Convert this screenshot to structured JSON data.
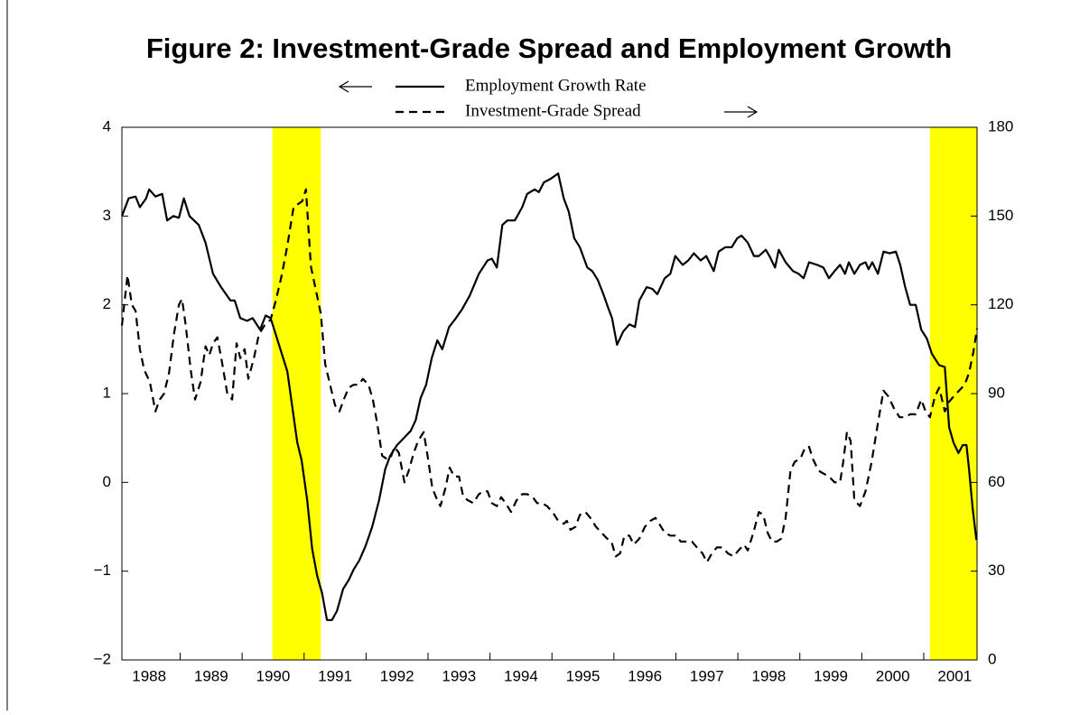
{
  "chart_data": {
    "type": "line",
    "title": "Figure 2: Investment-Grade Spread and Employment Growth",
    "xlim": [
      1988.06,
      2001.86
    ],
    "xticks": [
      {
        "value": 1988,
        "label": "1988"
      },
      {
        "value": 1989,
        "label": "1989"
      },
      {
        "value": 1990,
        "label": "1990"
      },
      {
        "value": 1991,
        "label": "1991"
      },
      {
        "value": 1992,
        "label": "1992"
      },
      {
        "value": 1993,
        "label": "1993"
      },
      {
        "value": 1994,
        "label": "1994"
      },
      {
        "value": 1995,
        "label": "1995"
      },
      {
        "value": 1996,
        "label": "1996"
      },
      {
        "value": 1997,
        "label": "1997"
      },
      {
        "value": 1998,
        "label": "1998"
      },
      {
        "value": 1999,
        "label": "1999"
      },
      {
        "value": 2000,
        "label": "2000"
      },
      {
        "value": 2001,
        "label": "2001"
      }
    ],
    "ylim": [
      -2,
      4
    ],
    "yticks": [
      {
        "value": -2,
        "label": "−2"
      },
      {
        "value": -1,
        "label": "−1"
      },
      0,
      1,
      2,
      3,
      4
    ],
    "y2lim": [
      0,
      180
    ],
    "y2ticks": [
      0,
      30,
      60,
      90,
      120,
      150,
      180
    ],
    "shaded_periods": [
      [
        1990.49,
        1991.27
      ],
      [
        2001.1,
        2001.86
      ]
    ],
    "shade_color": "#ffff00",
    "series": [
      {
        "name": "Employment Growth Rate",
        "color": "#000000",
        "style": "solid",
        "x": [
          1988.06,
          1988.17,
          1988.28,
          1988.35,
          1988.45,
          1988.5,
          1988.6,
          1988.71,
          1988.79,
          1988.89,
          1988.98,
          1989.06,
          1989.15,
          1989.3,
          1989.41,
          1989.53,
          1989.66,
          1989.81,
          1989.88,
          1989.97,
          1990.08,
          1990.17,
          1990.29,
          1990.38,
          1990.46,
          1990.55,
          1990.64,
          1990.73,
          1990.8,
          1990.89,
          1990.96,
          1991.05,
          1991.13,
          1991.21,
          1991.29,
          1991.37,
          1991.45,
          1991.53,
          1991.63,
          1991.72,
          1991.8,
          1991.89,
          1991.99,
          1992.1,
          1992.21,
          1992.31,
          1992.39,
          1992.5,
          1992.61,
          1992.72,
          1992.8,
          1992.88,
          1992.97,
          1993.06,
          1993.15,
          1993.23,
          1993.34,
          1993.45,
          1993.55,
          1993.67,
          1993.82,
          1993.96,
          1994.03,
          1994.11,
          1994.2,
          1994.28,
          1994.4,
          1994.52,
          1994.6,
          1994.72,
          1994.79,
          1994.87,
          1994.98,
          1995.1,
          1995.19,
          1995.27,
          1995.36,
          1995.45,
          1995.57,
          1995.65,
          1995.74,
          1995.83,
          1995.9,
          1995.97,
          1996.05,
          1996.15,
          1996.25,
          1996.34,
          1996.41,
          1996.53,
          1996.62,
          1996.7,
          1996.82,
          1996.91,
          1996.99,
          1997.11,
          1997.2,
          1997.29,
          1997.4,
          1997.49,
          1997.61,
          1997.69,
          1997.8,
          1997.9,
          1997.99,
          1998.06,
          1998.16,
          1998.26,
          1998.34,
          1998.45,
          1998.51,
          1998.6,
          1998.66,
          1998.77,
          1998.89,
          1998.98,
          1999.06,
          1999.15,
          1999.28,
          1999.38,
          1999.47,
          1999.56,
          1999.65,
          1999.73,
          1999.79,
          1999.88,
          1999.97,
          2000.06,
          2000.11,
          2000.17,
          2000.26,
          2000.35,
          2000.45,
          2000.55,
          2000.62,
          2000.7,
          2000.78,
          2000.87,
          2000.96,
          2001.05,
          2001.13,
          2001.22,
          2001.25,
          2001.34,
          2001.41,
          2001.48,
          2001.56,
          2001.63,
          2001.69,
          2001.73,
          2001.79,
          2001.85
        ],
        "values": [
          3.0,
          3.2,
          3.22,
          3.1,
          3.2,
          3.3,
          3.22,
          3.25,
          2.95,
          3.0,
          2.98,
          3.2,
          3.0,
          2.9,
          2.7,
          2.35,
          2.2,
          2.05,
          2.05,
          1.85,
          1.82,
          1.85,
          1.72,
          1.88,
          1.85,
          1.65,
          1.45,
          1.25,
          0.9,
          0.45,
          0.25,
          -0.2,
          -0.75,
          -1.05,
          -1.25,
          -1.55,
          -1.55,
          -1.45,
          -1.2,
          -1.1,
          -0.98,
          -0.88,
          -0.72,
          -0.5,
          -0.2,
          0.15,
          0.3,
          0.42,
          0.5,
          0.58,
          0.7,
          0.95,
          1.1,
          1.4,
          1.6,
          1.5,
          1.75,
          1.85,
          1.95,
          2.1,
          2.35,
          2.5,
          2.52,
          2.42,
          2.9,
          2.95,
          2.95,
          3.1,
          3.25,
          3.3,
          3.27,
          3.38,
          3.42,
          3.48,
          3.2,
          3.05,
          2.75,
          2.65,
          2.42,
          2.38,
          2.28,
          2.12,
          1.98,
          1.85,
          1.55,
          1.7,
          1.78,
          1.75,
          2.05,
          2.2,
          2.18,
          2.12,
          2.3,
          2.35,
          2.55,
          2.45,
          2.5,
          2.58,
          2.5,
          2.55,
          2.38,
          2.6,
          2.65,
          2.65,
          2.75,
          2.78,
          2.7,
          2.55,
          2.55,
          2.62,
          2.55,
          2.42,
          2.62,
          2.48,
          2.38,
          2.35,
          2.3,
          2.48,
          2.45,
          2.42,
          2.3,
          2.38,
          2.45,
          2.35,
          2.48,
          2.35,
          2.45,
          2.48,
          2.4,
          2.48,
          2.35,
          2.6,
          2.58,
          2.6,
          2.45,
          2.2,
          2.0,
          2.0,
          1.72,
          1.62,
          1.45,
          1.35,
          1.32,
          1.3,
          0.62,
          0.45,
          0.33,
          0.42,
          0.42,
          0.15,
          -0.3,
          -0.65
        ]
      },
      {
        "name": "Investment-Grade Spread",
        "color": "#000000",
        "style": "dashed",
        "axis": "y2",
        "x": [
          1988.06,
          1988.15,
          1988.22,
          1988.28,
          1988.35,
          1988.42,
          1988.51,
          1988.6,
          1988.67,
          1988.74,
          1988.82,
          1988.9,
          1988.98,
          1989.03,
          1989.09,
          1989.17,
          1989.24,
          1989.33,
          1989.41,
          1989.47,
          1989.53,
          1989.6,
          1989.68,
          1989.76,
          1989.84,
          1989.91,
          1989.97,
          1990.04,
          1990.1,
          1990.19,
          1990.27,
          1990.36,
          1990.46,
          1990.55,
          1990.64,
          1990.73,
          1990.83,
          1990.9,
          1990.97,
          1991.03,
          1991.11,
          1991.19,
          1991.27,
          1991.34,
          1991.43,
          1991.5,
          1991.57,
          1991.64,
          1991.72,
          1991.8,
          1991.88,
          1991.95,
          1992.04,
          1992.11,
          1992.18,
          1992.26,
          1992.33,
          1992.39,
          1992.46,
          1992.53,
          1992.62,
          1992.69,
          1992.77,
          1992.84,
          1992.93,
          1993.0,
          1993.07,
          1993.15,
          1993.2,
          1993.28,
          1993.35,
          1993.42,
          1993.5,
          1993.57,
          1993.64,
          1993.73,
          1993.82,
          1993.89,
          1993.96,
          1994.03,
          1994.11,
          1994.18,
          1994.25,
          1994.34,
          1994.43,
          1994.52,
          1994.6,
          1994.69,
          1994.76,
          1994.84,
          1994.92,
          1995.01,
          1995.1,
          1995.19,
          1995.24,
          1995.3,
          1995.38,
          1995.45,
          1995.54,
          1995.62,
          1995.71,
          1995.8,
          1995.89,
          1995.96,
          1996.03,
          1996.1,
          1996.17,
          1996.25,
          1996.32,
          1996.41,
          1996.5,
          1996.59,
          1996.67,
          1996.73,
          1996.82,
          1996.91,
          1996.99,
          1997.08,
          1997.17,
          1997.26,
          1997.34,
          1997.43,
          1997.5,
          1997.58,
          1997.66,
          1997.75,
          1997.84,
          1997.93,
          1998.01,
          1998.1,
          1998.16,
          1998.25,
          1998.34,
          1998.41,
          1998.48,
          1998.55,
          1998.63,
          1998.7,
          1998.77,
          1998.85,
          1998.92,
          1999.01,
          1999.09,
          1999.15,
          1999.21,
          1999.3,
          1999.38,
          1999.47,
          1999.56,
          1999.65,
          1999.7,
          1999.76,
          1999.82,
          1999.88,
          1999.97,
          2000.06,
          2000.16,
          2000.26,
          2000.35,
          2000.43,
          2000.52,
          2000.61,
          2000.7,
          2000.78,
          2000.87,
          2000.96,
          2001.03,
          2001.1,
          2001.18,
          2001.25,
          2001.34,
          2001.4,
          2001.48,
          2001.57,
          2001.66,
          2001.73,
          2001.8,
          2001.86
        ],
        "values": [
          113,
          130,
          120,
          118,
          105,
          98,
          94,
          84,
          88,
          90,
          97,
          110,
          120,
          122,
          113,
          98,
          88,
          94,
          106,
          103,
          107,
          109,
          100,
          90,
          88,
          107,
          102,
          105,
          95,
          102,
          110,
          113,
          115,
          122,
          130,
          140,
          153,
          154,
          155,
          159,
          133,
          125,
          117,
          100,
          92,
          86,
          84,
          88,
          92,
          93,
          93,
          95,
          93,
          88,
          80,
          69,
          68,
          68,
          72,
          70,
          60,
          64,
          70,
          74,
          77,
          68,
          58,
          54,
          52,
          58,
          65,
          62,
          62,
          55,
          54,
          53,
          56,
          57,
          57,
          53,
          52,
          55,
          53,
          50,
          54,
          56,
          56,
          55,
          53,
          53,
          52,
          50,
          47,
          46,
          47,
          44,
          45,
          49,
          50,
          48,
          45,
          43,
          41,
          40,
          35,
          36,
          42,
          42,
          39,
          41,
          45,
          47,
          48,
          46,
          43,
          42,
          42,
          40,
          40,
          40,
          38,
          36,
          33,
          36,
          38,
          38,
          36,
          35,
          37,
          39,
          37,
          43,
          50,
          49,
          43,
          40,
          40,
          41,
          48,
          64,
          67,
          68,
          72,
          72,
          68,
          64,
          63,
          62,
          60,
          60,
          67,
          77,
          74,
          54,
          52,
          57,
          67,
          80,
          91,
          89,
          85,
          82,
          82,
          83,
          83,
          88,
          84,
          82,
          89,
          92,
          84,
          87,
          89,
          91,
          93,
          97,
          104,
          112
        ]
      }
    ]
  }
}
